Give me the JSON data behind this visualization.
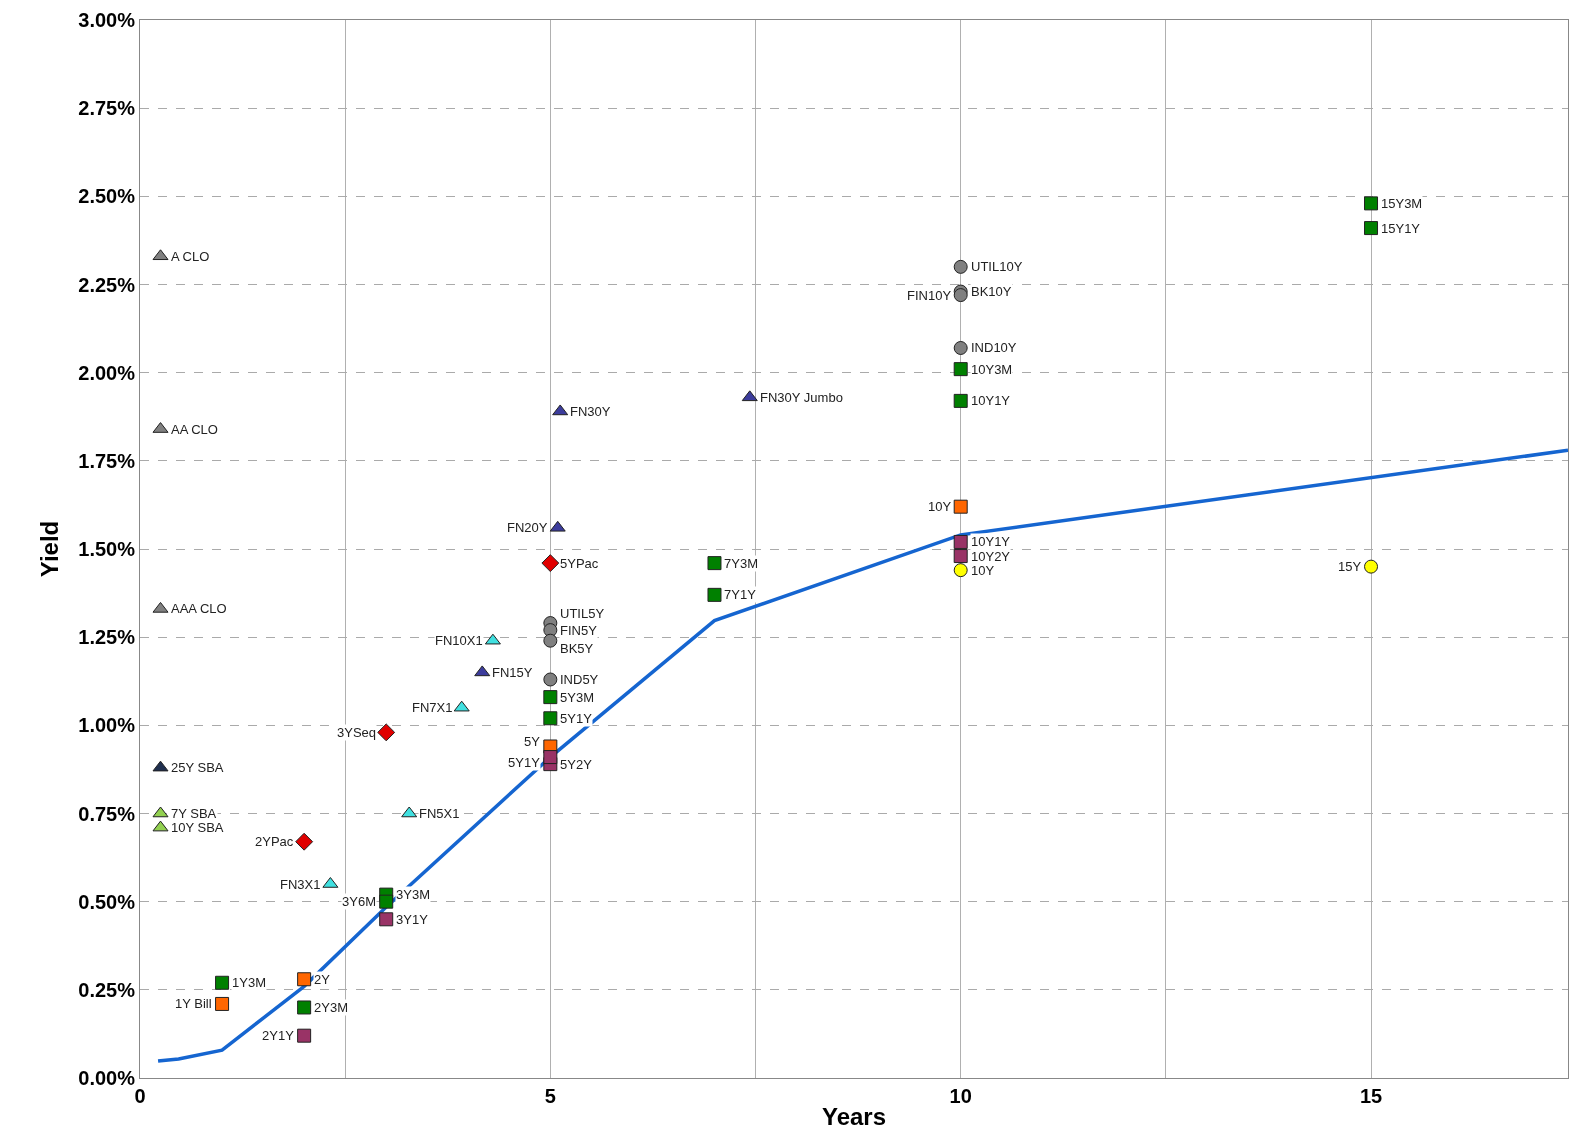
{
  "chart_data": {
    "type": "scatter",
    "xlabel": "Years",
    "ylabel": "Yield",
    "xlim": [
      0,
      17.4
    ],
    "ylim": [
      0,
      3
    ],
    "xticks": [
      0,
      {
        "value": 2.5,
        "label": null
      },
      5,
      {
        "value": 7.5,
        "label": null
      },
      10,
      {
        "value": 12.5,
        "label": null
      },
      15
    ],
    "yticks": [
      {
        "value": 0,
        "label": "0.00%"
      },
      {
        "value": 0.25,
        "label": "0.25%"
      },
      {
        "value": 0.5,
        "label": "0.50%"
      },
      {
        "value": 0.75,
        "label": "0.75%"
      },
      {
        "value": 1,
        "label": "1.00%"
      },
      {
        "value": 1.25,
        "label": "1.25%"
      },
      {
        "value": 1.5,
        "label": "1.50%"
      },
      {
        "value": 1.75,
        "label": "1.75%"
      },
      {
        "value": 2,
        "label": "2.00%"
      },
      {
        "value": 2.25,
        "label": "2.25%"
      },
      {
        "value": 2.5,
        "label": "2.50%"
      },
      {
        "value": 2.75,
        "label": "2.75%"
      },
      {
        "value": 3,
        "label": "3.00%"
      }
    ],
    "grid": true,
    "series": [
      {
        "type": "line",
        "color": "#1565d0",
        "marker": "none",
        "line_style": "solid",
        "x": [
          0.22,
          0.47,
          1,
          2,
          3,
          5,
          7,
          10,
          17.4
        ],
        "values": [
          0.048,
          0.054,
          0.079,
          0.26,
          0.485,
          0.91,
          1.297,
          1.54,
          1.78
        ]
      },
      {
        "color": "#808080",
        "marker": "triangle",
        "x": [
          0.25,
          0.25,
          0.25
        ],
        "values": [
          2.33,
          1.84,
          1.33
        ]
      },
      {
        "color": "#1f2f4f",
        "marker": "triangle",
        "x": [
          0.25
        ],
        "values": [
          0.88
        ]
      },
      {
        "color": "#92d050",
        "marker": "triangle",
        "x": [
          0.25,
          0.25
        ],
        "values": [
          0.75,
          0.71
        ]
      },
      {
        "color": "#3c3c9c",
        "marker": "triangle",
        "x": [
          5.12,
          7.43,
          5.09,
          4.17
        ],
        "values": [
          1.89,
          1.93,
          1.56,
          1.15
        ]
      },
      {
        "color": "#40e0e0",
        "marker": "triangle",
        "x": [
          3.92,
          3.28,
          2.32,
          4.3
        ],
        "values": [
          1.05,
          0.75,
          0.55,
          1.24
        ]
      },
      {
        "color": "#e00000",
        "marker": "diamond",
        "x": [
          5,
          3,
          2
        ],
        "values": [
          1.46,
          0.98,
          0.67
        ]
      },
      {
        "color": "#808080",
        "marker": "circle",
        "x": [
          10,
          10,
          10,
          10,
          5,
          5,
          5,
          5
        ],
        "values": [
          2.3,
          2.23,
          2.22,
          2.07,
          1.29,
          1.27,
          1.24,
          1.13
        ]
      },
      {
        "color": "#008000",
        "marker": "square",
        "x": [
          15,
          15,
          10,
          10,
          7,
          7,
          5,
          5,
          3,
          3,
          1,
          2
        ],
        "values": [
          2.48,
          2.41,
          2.01,
          1.92,
          1.46,
          1.37,
          1.08,
          1.02,
          0.52,
          0.5,
          0.27,
          0.2
        ]
      },
      {
        "color": "#ff6600",
        "marker": "square",
        "x": [
          10,
          5,
          2,
          1
        ],
        "values": [
          1.62,
          0.94,
          0.28,
          0.21
        ]
      },
      {
        "color": "#993366",
        "marker": "square",
        "x": [
          10,
          10,
          5,
          5,
          3,
          2
        ],
        "values": [
          1.52,
          1.48,
          0.89,
          0.91,
          0.45,
          0.12
        ]
      },
      {
        "color": "#ffff00",
        "marker": "circle",
        "x": [
          10,
          15
        ],
        "values": [
          1.44,
          1.45
        ]
      }
    ],
    "annotations": [
      {
        "text": "A CLO",
        "x": 0.25,
        "y": 2.33
      },
      {
        "text": "AA CLO",
        "x": 0.25,
        "y": 1.84
      },
      {
        "text": "AAA CLO",
        "x": 0.25,
        "y": 1.33
      },
      {
        "text": "25Y SBA",
        "x": 0.25,
        "y": 0.88
      },
      {
        "text": "7Y SBA",
        "x": 0.25,
        "y": 0.75
      },
      {
        "text": "10Y SBA",
        "x": 0.25,
        "y": 0.71
      },
      {
        "text": "FN30Y",
        "x": 5.12,
        "y": 1.89
      },
      {
        "text": "FN30Y Jumbo",
        "x": 7.43,
        "y": 1.93
      },
      {
        "text": "FN20Y",
        "x": 5.09,
        "y": 1.56
      },
      {
        "text": "FN15Y",
        "x": 4.17,
        "y": 1.15
      },
      {
        "text": "FN7X1",
        "x": 3.92,
        "y": 1.05
      },
      {
        "text": "FN5X1",
        "x": 3.28,
        "y": 0.75
      },
      {
        "text": "FN3X1",
        "x": 2.32,
        "y": 0.55
      },
      {
        "text": "FN10X1",
        "x": 4.3,
        "y": 1.24
      },
      {
        "text": "5YPac",
        "x": 5,
        "y": 1.46
      },
      {
        "text": "3YSeq",
        "x": 3,
        "y": 0.98
      },
      {
        "text": "2YPac",
        "x": 2,
        "y": 0.67
      },
      {
        "text": "UTIL10Y",
        "x": 10,
        "y": 2.3
      },
      {
        "text": "BK10Y",
        "x": 10,
        "y": 2.23
      },
      {
        "text": "FIN10Y",
        "x": 10,
        "y": 2.22
      },
      {
        "text": "IND10Y",
        "x": 10,
        "y": 2.07
      },
      {
        "text": "UTIL5Y",
        "x": 5,
        "y": 1.29
      },
      {
        "text": "FIN5Y",
        "x": 5,
        "y": 1.27
      },
      {
        "text": "BK5Y",
        "x": 5,
        "y": 1.24
      },
      {
        "text": "IND5Y",
        "x": 5,
        "y": 1.13
      },
      {
        "text": "15Y3M",
        "x": 15,
        "y": 2.48
      },
      {
        "text": "15Y1Y",
        "x": 15,
        "y": 2.41
      },
      {
        "text": "10Y3M",
        "x": 10,
        "y": 2.01
      },
      {
        "text": "10Y1Y",
        "x": 10,
        "y": 1.92
      },
      {
        "text": "7Y3M",
        "x": 7,
        "y": 1.46
      },
      {
        "text": "7Y1Y",
        "x": 7,
        "y": 1.37
      },
      {
        "text": "5Y3M",
        "x": 5,
        "y": 1.08
      },
      {
        "text": "5Y1Y",
        "x": 5,
        "y": 1.02
      },
      {
        "text": "3Y3M",
        "x": 3,
        "y": 0.52
      },
      {
        "text": "3Y6M",
        "x": 3,
        "y": 0.5
      },
      {
        "text": "1Y3M",
        "x": 1,
        "y": 0.27
      },
      {
        "text": "2Y3M",
        "x": 2,
        "y": 0.2
      },
      {
        "text": "10Y",
        "x": 10,
        "y": 1.62
      },
      {
        "text": "5Y",
        "x": 5,
        "y": 0.94
      },
      {
        "text": "2Y",
        "x": 2,
        "y": 0.28
      },
      {
        "text": "1Y Bill",
        "x": 1,
        "y": 0.21
      },
      {
        "text": "10Y1Y",
        "x": 10,
        "y": 1.52
      },
      {
        "text": "10Y2Y",
        "x": 10,
        "y": 1.48
      },
      {
        "text": "5Y2Y",
        "x": 5,
        "y": 0.89
      },
      {
        "text": "5Y1Y",
        "x": 5,
        "y": 0.91
      },
      {
        "text": "3Y1Y",
        "x": 3,
        "y": 0.45
      },
      {
        "text": "2Y1Y",
        "x": 2,
        "y": 0.12
      },
      {
        "text": "10Y",
        "x": 10,
        "y": 1.44
      },
      {
        "text": "15Y",
        "x": 15,
        "y": 1.45
      }
    ]
  }
}
